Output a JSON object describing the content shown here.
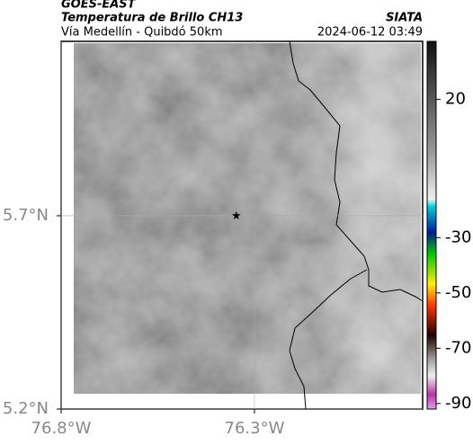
{
  "header": {
    "source": "GOES-EAST",
    "title": "Temperatura de Brillo CH13",
    "subtitle": "Vía Medellín - Quibdó 50km",
    "brand": "SIATA",
    "datetime": "2024-06-12 03:49"
  },
  "map": {
    "xlim": [
      -76.8,
      -75.865
    ],
    "ylim": [
      5.2,
      6.151
    ],
    "xticks": [
      {
        "value": -76.8,
        "label": "76.8°W"
      },
      {
        "value": -76.3,
        "label": "76.3°W"
      }
    ],
    "yticks": [
      {
        "value": 5.7,
        "label": "5.7°N"
      },
      {
        "value": 5.2,
        "label": "5.2°N"
      }
    ],
    "grid": true,
    "marker": {
      "lon": -76.347,
      "lat": 5.7
    }
  },
  "colorbar": {
    "lim": [
      -92,
      41
    ],
    "ticks": [
      20,
      -30,
      -50,
      -70,
      -90
    ]
  }
}
